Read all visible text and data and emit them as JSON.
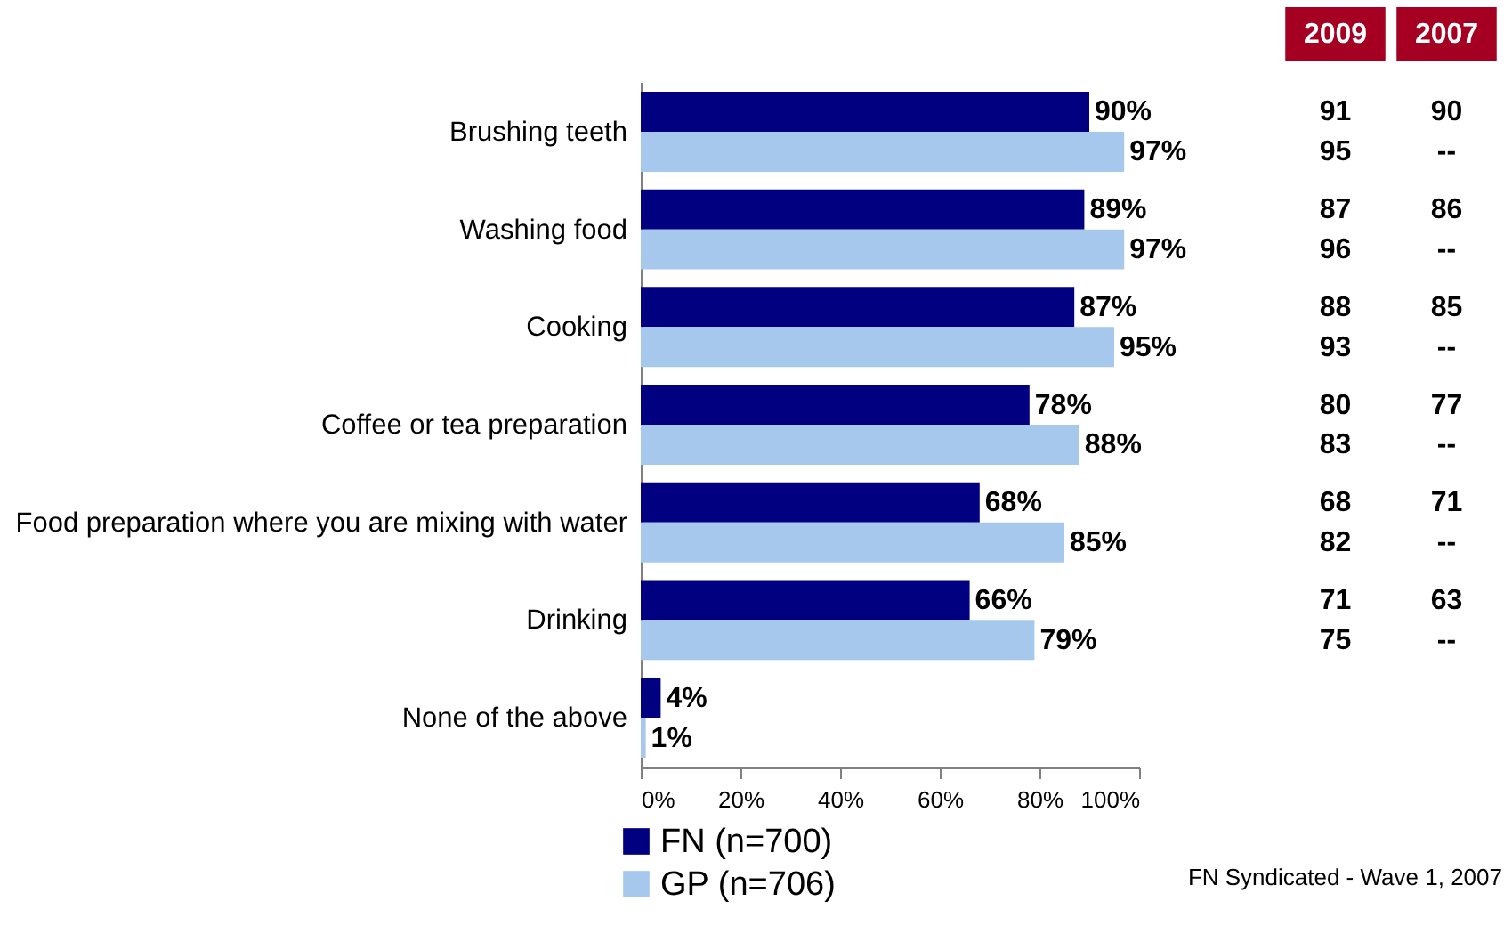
{
  "chart_data": {
    "type": "bar",
    "orientation": "horizontal",
    "legend": "bottom",
    "categories": [
      "Brushing teeth",
      "Washing food",
      "Cooking",
      "Coffee or tea preparation",
      "Food preparation where you are mixing with water",
      "Drinking",
      "None of the above"
    ],
    "series": [
      {
        "name": "FN (n=700)",
        "color": "#000080",
        "values": [
          90,
          89,
          87,
          78,
          68,
          66,
          4
        ],
        "value_labels": [
          "90%",
          "89%",
          "87%",
          "78%",
          "68%",
          "66%",
          "4%"
        ]
      },
      {
        "name": "GP (n=706)",
        "color": "#a6c8ec",
        "values": [
          97,
          97,
          95,
          88,
          85,
          79,
          1
        ],
        "value_labels": [
          "97%",
          "97%",
          "95%",
          "88%",
          "85%",
          "79%",
          "1%"
        ]
      }
    ],
    "xlim": [
      0,
      100
    ],
    "xticks": [
      {
        "value": 0,
        "label": "0%"
      },
      {
        "value": 20,
        "label": "20%"
      },
      {
        "value": 40,
        "label": "40%"
      },
      {
        "value": 60,
        "label": "60%"
      },
      {
        "value": 80,
        "label": "80%"
      },
      {
        "value": 100,
        "label": "100%"
      }
    ],
    "annotations": [
      "2009",
      "2007",
      "91",
      "90",
      "95",
      "--",
      "87",
      "86",
      "96",
      "--",
      "88",
      "85",
      "93",
      "--",
      "80",
      "77",
      "83",
      "--",
      "68",
      "71",
      "82",
      "--",
      "71",
      "63",
      "75",
      "--",
      "FN Syndicated - Wave 1, 2007"
    ]
  }
}
